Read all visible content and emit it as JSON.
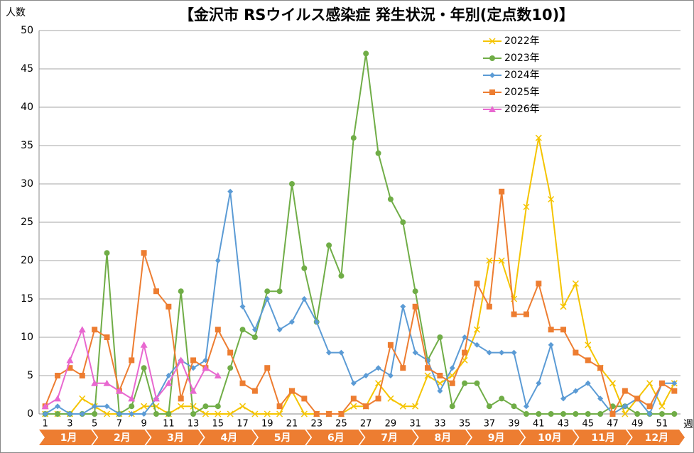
{
  "chart_data": {
    "type": "line",
    "title": "【金沢市 RSウイルス感染症 発生状況・年別(定点数10)】",
    "y_label": "人数",
    "x_label": "週",
    "categories": [
      1,
      null,
      3,
      null,
      5,
      null,
      7,
      null,
      9,
      null,
      11,
      null,
      13,
      null,
      15,
      null,
      17,
      null,
      19,
      null,
      21,
      null,
      23,
      null,
      25,
      null,
      27,
      null,
      29,
      null,
      31,
      null,
      33,
      null,
      35,
      null,
      37,
      null,
      39,
      null,
      41,
      null,
      43,
      null,
      45,
      null,
      47,
      null,
      49,
      null,
      51,
      null
    ],
    "months": [
      "1月",
      "2月",
      "3月",
      "4月",
      "5月",
      "6月",
      "7月",
      "8月",
      "9月",
      "10月",
      "11月",
      "12月"
    ],
    "month_color": "#ed7d31",
    "ylim": [
      0,
      50
    ],
    "yticks": [
      0,
      5,
      10,
      15,
      20,
      25,
      30,
      35,
      40,
      45,
      50
    ],
    "grid": true,
    "legend": "upper right",
    "series": [
      {
        "name": "2022年",
        "color": "#f5c400",
        "marker": "x",
        "values": [
          0,
          0,
          0,
          2,
          1,
          0,
          0,
          0,
          1,
          1,
          0,
          1,
          1,
          0,
          0,
          0,
          1,
          0,
          0,
          0,
          3,
          0,
          0,
          0,
          0,
          1,
          1,
          4,
          2,
          1,
          1,
          5,
          4,
          5,
          7,
          11,
          20,
          20,
          15,
          27,
          36,
          28,
          14,
          17,
          9,
          6,
          4,
          0,
          2,
          4,
          1,
          4
        ]
      },
      {
        "name": "2023年",
        "color": "#70ad47",
        "marker": "circle",
        "values": [
          0,
          0,
          0,
          0,
          0,
          21,
          0,
          1,
          6,
          0,
          0,
          16,
          0,
          1,
          1,
          6,
          11,
          10,
          16,
          16,
          30,
          19,
          12,
          22,
          18,
          36,
          47,
          34,
          28,
          25,
          16,
          7,
          10,
          1,
          4,
          4,
          1,
          2,
          1,
          0,
          0,
          0,
          0,
          0,
          0,
          0,
          1,
          1,
          0,
          0,
          0,
          0
        ]
      },
      {
        "name": "2024年",
        "color": "#5b9bd5",
        "marker": "diamond",
        "values": [
          0,
          1,
          0,
          0,
          1,
          1,
          0,
          0,
          0,
          2,
          5,
          7,
          6,
          7,
          20,
          29,
          14,
          11,
          15,
          11,
          12,
          15,
          12,
          8,
          8,
          4,
          5,
          6,
          5,
          14,
          8,
          7,
          3,
          6,
          10,
          9,
          8,
          8,
          8,
          1,
          4,
          9,
          2,
          3,
          4,
          2,
          0,
          1,
          2,
          0,
          4,
          4
        ]
      },
      {
        "name": "2025年",
        "color": "#ed7d31",
        "marker": "square",
        "values": [
          1,
          5,
          6,
          5,
          11,
          10,
          3,
          7,
          21,
          16,
          14,
          2,
          7,
          6,
          11,
          8,
          4,
          3,
          6,
          1,
          3,
          2,
          0,
          0,
          0,
          2,
          1,
          2,
          9,
          6,
          14,
          6,
          5,
          4,
          8,
          17,
          14,
          29,
          13,
          13,
          17,
          11,
          11,
          8,
          7,
          6,
          0,
          3,
          2,
          1,
          4,
          3
        ]
      },
      {
        "name": "2026年",
        "color": "#e868d0",
        "marker": "triangle",
        "values": [
          1,
          2,
          7,
          11,
          4,
          4,
          3,
          2,
          9,
          2,
          4,
          7,
          3,
          6,
          5,
          null,
          null,
          null,
          null,
          null,
          null,
          null,
          null,
          null,
          null,
          null,
          null,
          null,
          null,
          null,
          null,
          null,
          null,
          null,
          null,
          null,
          null,
          null,
          null,
          null,
          null,
          null,
          null,
          null,
          null,
          null,
          null,
          null,
          null,
          null,
          null,
          null
        ]
      }
    ]
  }
}
